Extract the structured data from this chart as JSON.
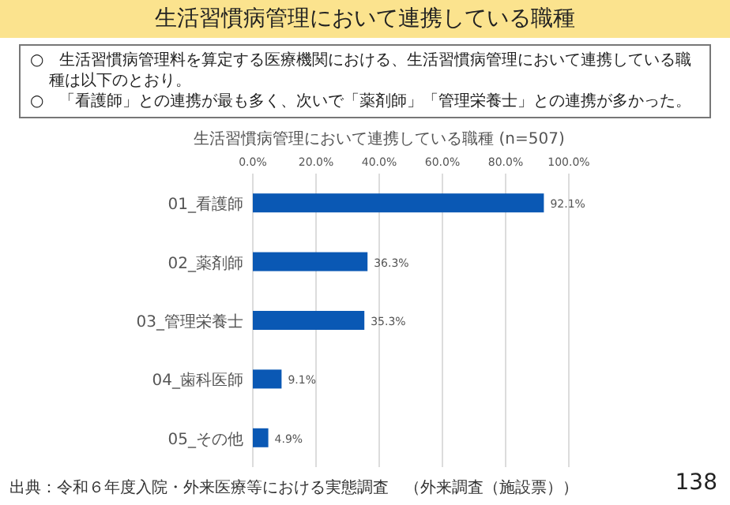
{
  "chart_data": {
    "type": "bar",
    "orientation": "horizontal",
    "title": "生活習慣病管理において連携している職種",
    "subtitle": "生活習慣病管理において連携している職種 (n=507)",
    "annotations": [
      "○　生活習慣病管理料を算定する医療機関における、生活習慣病管理において連携している職種は以下のとおり。",
      "○　「看護師」との連携が最も多く、次いで「薬剤師」「管理栄養士」との連携が多かった。",
      "出典：令和６年度入院・外来医療等における実態調査　（外来調査（施設票））",
      "138"
    ],
    "categories": [
      "01_看護師",
      "02_薬剤師",
      "03_管理栄養士",
      "04_歯科医師",
      "05_その他"
    ],
    "values": [
      92.1,
      36.3,
      35.3,
      9.1,
      4.9
    ],
    "value_labels": [
      "92.1%",
      "36.3%",
      "35.3%",
      "9.1%",
      "4.9%"
    ],
    "color": "#0a58b4",
    "xlim": [
      0,
      100
    ],
    "xticks": [
      {
        "value": 0,
        "label": "0.0%"
      },
      {
        "value": 20,
        "label": "20.0%"
      },
      {
        "value": 40,
        "label": "40.0%"
      },
      {
        "value": 60,
        "label": "60.0%"
      },
      {
        "value": 80,
        "label": "80.0%"
      },
      {
        "value": 100,
        "label": "100.0%"
      }
    ],
    "grid": "x"
  }
}
